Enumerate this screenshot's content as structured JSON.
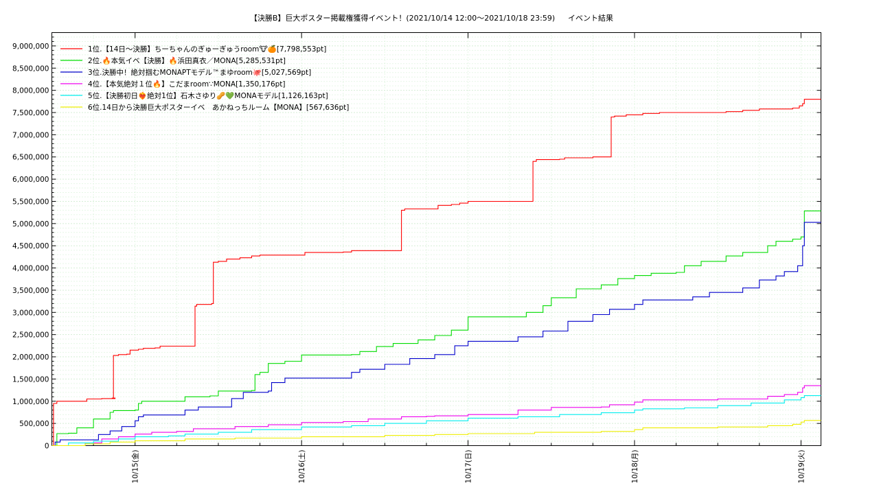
{
  "chart_data": {
    "type": "line",
    "title": "【決勝B】巨大ポスター掲載権獲得イベント！(2021/10/14 12:00～2021/10/18 23:59)",
    "subtitle": "イベント結果",
    "xlabel": "",
    "ylabel": "",
    "xlim": [
      -0.5,
      4.12
    ],
    "ylim": [
      0,
      9300000
    ],
    "yticks": [
      {
        "value": 0,
        "label": "0"
      },
      {
        "value": 500000,
        "label": "500,000"
      },
      {
        "value": 1000000,
        "label": "1,000,000"
      },
      {
        "value": 1500000,
        "label": "1,500,000"
      },
      {
        "value": 2000000,
        "label": "2,000,000"
      },
      {
        "value": 2500000,
        "label": "2,500,000"
      },
      {
        "value": 3000000,
        "label": "3,000,000"
      },
      {
        "value": 3500000,
        "label": "3,500,000"
      },
      {
        "value": 4000000,
        "label": "4,000,000"
      },
      {
        "value": 4500000,
        "label": "4,500,000"
      },
      {
        "value": 5000000,
        "label": "5,000,000"
      },
      {
        "value": 5500000,
        "label": "5,500,000"
      },
      {
        "value": 6000000,
        "label": "6,000,000"
      },
      {
        "value": 6500000,
        "label": "6,500,000"
      },
      {
        "value": 7000000,
        "label": "7,000,000"
      },
      {
        "value": 7500000,
        "label": "7,500,000"
      },
      {
        "value": 8000000,
        "label": "8,000,000"
      },
      {
        "value": 8500000,
        "label": "8,500,000"
      },
      {
        "value": 9000000,
        "label": "9,000,000"
      }
    ],
    "xticks": [
      {
        "value": 0,
        "label": "10/15(金)"
      },
      {
        "value": 1,
        "label": "10/16(土)"
      },
      {
        "value": 2,
        "label": "10/17(日)"
      },
      {
        "value": 3,
        "label": "10/18(月)"
      },
      {
        "value": 4,
        "label": "10/19(火)"
      }
    ],
    "grid": true,
    "legend_position": "top-left",
    "series": [
      {
        "name": "1位.【14日～決勝】ちーちゃんのぎゅーぎゅうroom🐮🍊[7,798,553pt]",
        "color": "#ff0000",
        "points": [
          [
            -0.5,
            0
          ],
          [
            -0.49,
            950000
          ],
          [
            -0.47,
            1000000
          ],
          [
            -0.3,
            1000000
          ],
          [
            -0.29,
            1050000
          ],
          [
            -0.2,
            1060000
          ],
          [
            -0.12,
            1070000
          ],
          [
            -0.14,
            1070000
          ],
          [
            -0.13,
            2030000
          ],
          [
            -0.1,
            2050000
          ],
          [
            -0.05,
            2060000
          ],
          [
            -0.03,
            2150000
          ],
          [
            0.02,
            2170000
          ],
          [
            0.05,
            2190000
          ],
          [
            0.12,
            2200000
          ],
          [
            0.15,
            2240000
          ],
          [
            0.35,
            2240000
          ],
          [
            0.36,
            3140000
          ],
          [
            0.37,
            3180000
          ],
          [
            0.46,
            3200000
          ],
          [
            0.47,
            4130000
          ],
          [
            0.5,
            4150000
          ],
          [
            0.55,
            4200000
          ],
          [
            0.63,
            4230000
          ],
          [
            0.7,
            4270000
          ],
          [
            0.75,
            4290000
          ],
          [
            1.02,
            4350000
          ],
          [
            1.25,
            4360000
          ],
          [
            1.3,
            4390000
          ],
          [
            1.59,
            4390000
          ],
          [
            1.6,
            5300000
          ],
          [
            1.62,
            5330000
          ],
          [
            1.8,
            5330000
          ],
          [
            1.82,
            5410000
          ],
          [
            1.9,
            5430000
          ],
          [
            1.95,
            5460000
          ],
          [
            2.0,
            5500000
          ],
          [
            2.38,
            5500000
          ],
          [
            2.39,
            6400000
          ],
          [
            2.41,
            6440000
          ],
          [
            2.55,
            6450000
          ],
          [
            2.58,
            6480000
          ],
          [
            2.75,
            6500000
          ],
          [
            2.85,
            6500000
          ],
          [
            2.86,
            7400000
          ],
          [
            2.88,
            7420000
          ],
          [
            2.95,
            7450000
          ],
          [
            3.05,
            7480000
          ],
          [
            3.15,
            7500000
          ],
          [
            3.5,
            7500000
          ],
          [
            3.55,
            7520000
          ],
          [
            3.65,
            7550000
          ],
          [
            3.75,
            7580000
          ],
          [
            3.95,
            7600000
          ],
          [
            3.99,
            7650000
          ],
          [
            4.01,
            7700000
          ],
          [
            4.02,
            7798553
          ],
          [
            4.12,
            7798553
          ]
        ]
      },
      {
        "name": "2位.🔥本気イベ【決勝】🔥浜田真衣／MONA[5,285,531pt]",
        "color": "#00dd00",
        "points": [
          [
            -0.5,
            0
          ],
          [
            -0.47,
            270000
          ],
          [
            -0.4,
            280000
          ],
          [
            -0.35,
            400000
          ],
          [
            -0.25,
            600000
          ],
          [
            -0.15,
            750000
          ],
          [
            -0.13,
            790000
          ],
          [
            0.0,
            800000
          ],
          [
            0.02,
            950000
          ],
          [
            0.04,
            1000000
          ],
          [
            0.25,
            1000000
          ],
          [
            0.3,
            1100000
          ],
          [
            0.45,
            1120000
          ],
          [
            0.5,
            1230000
          ],
          [
            0.7,
            1240000
          ],
          [
            0.72,
            1600000
          ],
          [
            0.75,
            1650000
          ],
          [
            0.8,
            1850000
          ],
          [
            0.9,
            1900000
          ],
          [
            1.0,
            2040000
          ],
          [
            1.3,
            2050000
          ],
          [
            1.35,
            2120000
          ],
          [
            1.45,
            2230000
          ],
          [
            1.55,
            2300000
          ],
          [
            1.7,
            2380000
          ],
          [
            1.8,
            2480000
          ],
          [
            1.9,
            2600000
          ],
          [
            2.0,
            2900000
          ],
          [
            2.3,
            2900000
          ],
          [
            2.35,
            3000000
          ],
          [
            2.45,
            3150000
          ],
          [
            2.5,
            3330000
          ],
          [
            2.65,
            3530000
          ],
          [
            2.8,
            3620000
          ],
          [
            2.9,
            3760000
          ],
          [
            3.0,
            3830000
          ],
          [
            3.1,
            3880000
          ],
          [
            3.25,
            3900000
          ],
          [
            3.3,
            4050000
          ],
          [
            3.4,
            4150000
          ],
          [
            3.55,
            4270000
          ],
          [
            3.65,
            4350000
          ],
          [
            3.8,
            4500000
          ],
          [
            3.85,
            4600000
          ],
          [
            3.95,
            4650000
          ],
          [
            4.0,
            4700000
          ],
          [
            4.02,
            5285531
          ],
          [
            4.12,
            5285531
          ]
        ]
      },
      {
        "name": "3位.決勝中！絶対掴むMONAPTモデル™まゆroom🐙[5,027,569pt]",
        "color": "#0000cc",
        "points": [
          [
            -0.5,
            0
          ],
          [
            -0.48,
            80000
          ],
          [
            -0.45,
            130000
          ],
          [
            -0.25,
            130000
          ],
          [
            -0.22,
            250000
          ],
          [
            -0.15,
            330000
          ],
          [
            -0.08,
            430000
          ],
          [
            0.0,
            560000
          ],
          [
            0.02,
            650000
          ],
          [
            0.05,
            690000
          ],
          [
            0.25,
            690000
          ],
          [
            0.3,
            800000
          ],
          [
            0.38,
            870000
          ],
          [
            0.55,
            870000
          ],
          [
            0.58,
            1060000
          ],
          [
            0.65,
            1200000
          ],
          [
            0.8,
            1230000
          ],
          [
            0.82,
            1420000
          ],
          [
            0.9,
            1520000
          ],
          [
            1.25,
            1520000
          ],
          [
            1.3,
            1650000
          ],
          [
            1.35,
            1720000
          ],
          [
            1.5,
            1830000
          ],
          [
            1.65,
            1960000
          ],
          [
            1.8,
            2050000
          ],
          [
            1.92,
            2250000
          ],
          [
            2.0,
            2350000
          ],
          [
            2.25,
            2350000
          ],
          [
            2.3,
            2450000
          ],
          [
            2.45,
            2580000
          ],
          [
            2.6,
            2800000
          ],
          [
            2.75,
            2950000
          ],
          [
            2.85,
            3070000
          ],
          [
            3.0,
            3180000
          ],
          [
            3.05,
            3280000
          ],
          [
            3.3,
            3280000
          ],
          [
            3.35,
            3350000
          ],
          [
            3.45,
            3450000
          ],
          [
            3.65,
            3550000
          ],
          [
            3.75,
            3730000
          ],
          [
            3.85,
            3820000
          ],
          [
            3.9,
            3920000
          ],
          [
            3.98,
            4050000
          ],
          [
            4.01,
            4500000
          ],
          [
            4.02,
            5027569
          ],
          [
            4.12,
            5027569
          ]
        ]
      },
      {
        "name": "4位.【本気絶対１位🔥】こだまroom∵MONA[1,350,176pt]",
        "color": "#ee00ee",
        "points": [
          [
            -0.5,
            0
          ],
          [
            -0.3,
            60000
          ],
          [
            -0.2,
            150000
          ],
          [
            -0.1,
            200000
          ],
          [
            0.0,
            260000
          ],
          [
            0.1,
            300000
          ],
          [
            0.25,
            320000
          ],
          [
            0.35,
            380000
          ],
          [
            0.5,
            380000
          ],
          [
            0.6,
            430000
          ],
          [
            0.8,
            470000
          ],
          [
            1.0,
            520000
          ],
          [
            1.25,
            540000
          ],
          [
            1.4,
            600000
          ],
          [
            1.6,
            650000
          ],
          [
            1.75,
            660000
          ],
          [
            1.8,
            670000
          ],
          [
            2.0,
            700000
          ],
          [
            2.3,
            800000
          ],
          [
            2.5,
            860000
          ],
          [
            2.8,
            870000
          ],
          [
            2.85,
            920000
          ],
          [
            3.0,
            980000
          ],
          [
            3.05,
            1030000
          ],
          [
            3.5,
            1050000
          ],
          [
            3.8,
            1110000
          ],
          [
            3.9,
            1150000
          ],
          [
            3.98,
            1200000
          ],
          [
            4.01,
            1300000
          ],
          [
            4.02,
            1350176
          ],
          [
            4.12,
            1350176
          ]
        ]
      },
      {
        "name": "5位.【決勝初日❤️‍🔥絶対1位】石木さゆり🥜💚MONAモデル[1,126,163pt]",
        "color": "#00eeee",
        "points": [
          [
            -0.5,
            0
          ],
          [
            -0.4,
            60000
          ],
          [
            -0.25,
            100000
          ],
          [
            -0.1,
            150000
          ],
          [
            0.0,
            200000
          ],
          [
            0.2,
            220000
          ],
          [
            0.3,
            260000
          ],
          [
            0.5,
            300000
          ],
          [
            0.7,
            360000
          ],
          [
            1.0,
            420000
          ],
          [
            1.3,
            450000
          ],
          [
            1.5,
            500000
          ],
          [
            1.75,
            560000
          ],
          [
            2.0,
            620000
          ],
          [
            2.3,
            650000
          ],
          [
            2.55,
            700000
          ],
          [
            2.8,
            740000
          ],
          [
            3.0,
            800000
          ],
          [
            3.05,
            830000
          ],
          [
            3.3,
            850000
          ],
          [
            3.5,
            900000
          ],
          [
            3.7,
            960000
          ],
          [
            3.9,
            1030000
          ],
          [
            4.0,
            1080000
          ],
          [
            4.02,
            1126163
          ],
          [
            4.12,
            1126163
          ]
        ]
      },
      {
        "name": "6位.14日から決勝巨大ポスターイベ　あかねっちルーム【MONA】[567,636pt]",
        "color": "#eeee00",
        "points": [
          [
            -0.5,
            0
          ],
          [
            -0.3,
            40000
          ],
          [
            -0.15,
            80000
          ],
          [
            0.0,
            110000
          ],
          [
            0.3,
            150000
          ],
          [
            0.6,
            170000
          ],
          [
            1.0,
            200000
          ],
          [
            1.5,
            230000
          ],
          [
            1.8,
            250000
          ],
          [
            2.0,
            270000
          ],
          [
            2.4,
            300000
          ],
          [
            2.8,
            320000
          ],
          [
            3.0,
            360000
          ],
          [
            3.05,
            400000
          ],
          [
            3.5,
            420000
          ],
          [
            3.8,
            450000
          ],
          [
            3.95,
            480000
          ],
          [
            4.0,
            530000
          ],
          [
            4.02,
            567636
          ],
          [
            4.12,
            567636
          ]
        ]
      }
    ]
  }
}
